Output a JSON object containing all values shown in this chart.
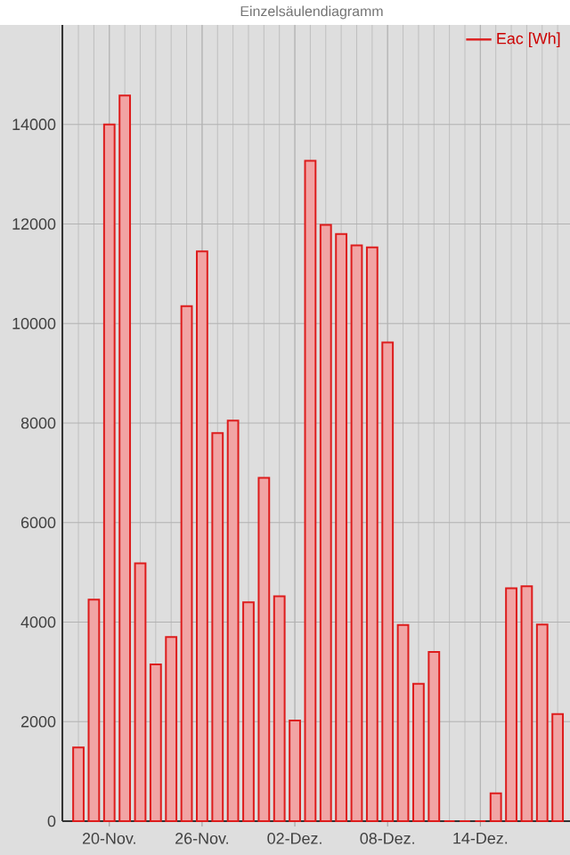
{
  "chart_data": {
    "type": "bar",
    "title": "Einzelsäulendiagramm",
    "categories": [
      null,
      null,
      "20-Nov.",
      null,
      null,
      null,
      null,
      null,
      "26-Nov.",
      null,
      null,
      null,
      null,
      null,
      "02-Dez.",
      null,
      null,
      null,
      null,
      null,
      "08-Dez.",
      null,
      null,
      null,
      null,
      null,
      "14-Dez.",
      null,
      null,
      null,
      null,
      null
    ],
    "series": [
      {
        "name": "Eac [Wh]",
        "color": "#dd1c1c",
        "values": [
          1480,
          4450,
          14000,
          14580,
          5180,
          3150,
          3700,
          10350,
          11450,
          7800,
          8050,
          4400,
          6900,
          4520,
          2020,
          13270,
          11980,
          11800,
          11570,
          11530,
          9620,
          3940,
          2760,
          3400,
          0,
          0,
          0,
          560,
          4680,
          4720,
          3950,
          2150
        ]
      }
    ],
    "ylim": [
      0,
      16000
    ],
    "yticks": [
      0,
      2000,
      4000,
      6000,
      8000,
      10000,
      12000,
      14000
    ],
    "grid": true,
    "legend": "top right"
  }
}
